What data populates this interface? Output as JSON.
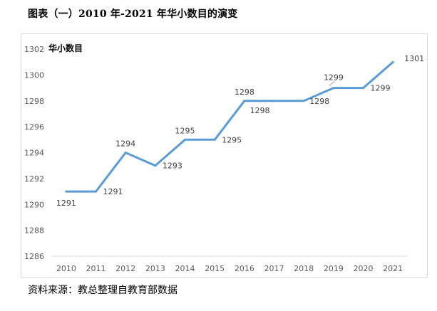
{
  "page": {
    "title": "图表（一）2010 年-2021 年华小数目的演变",
    "source": "资料来源：教总整理自教育部数据"
  },
  "chart_data": {
    "type": "line",
    "title": "华小数目",
    "xlabel": "",
    "ylabel": "",
    "categories": [
      "2010",
      "2011",
      "2012",
      "2013",
      "2014",
      "2015",
      "2016",
      "2017",
      "2018",
      "2019",
      "2020",
      "2021"
    ],
    "series": [
      {
        "values": [
          1291,
          1291,
          1294,
          1293,
          1295,
          1295,
          1298,
          1298,
          1298,
          1299,
          1299,
          1301
        ],
        "color": "#5b9bd5"
      }
    ],
    "data_labels": [
      "1291",
      "1291",
      "1294",
      "1293",
      "1295",
      "1295",
      "1298",
      "1298",
      "1298",
      "1299",
      "1299",
      "1301"
    ],
    "ylim": [
      1286,
      1302
    ],
    "yticks": [
      "1286",
      "1288",
      "1290",
      "1292",
      "1294",
      "1296",
      "1298",
      "1300",
      "1302"
    ],
    "legend": "none",
    "grid": false,
    "axis_color": "#d9d9d9",
    "tick_label_color": "#595959"
  }
}
